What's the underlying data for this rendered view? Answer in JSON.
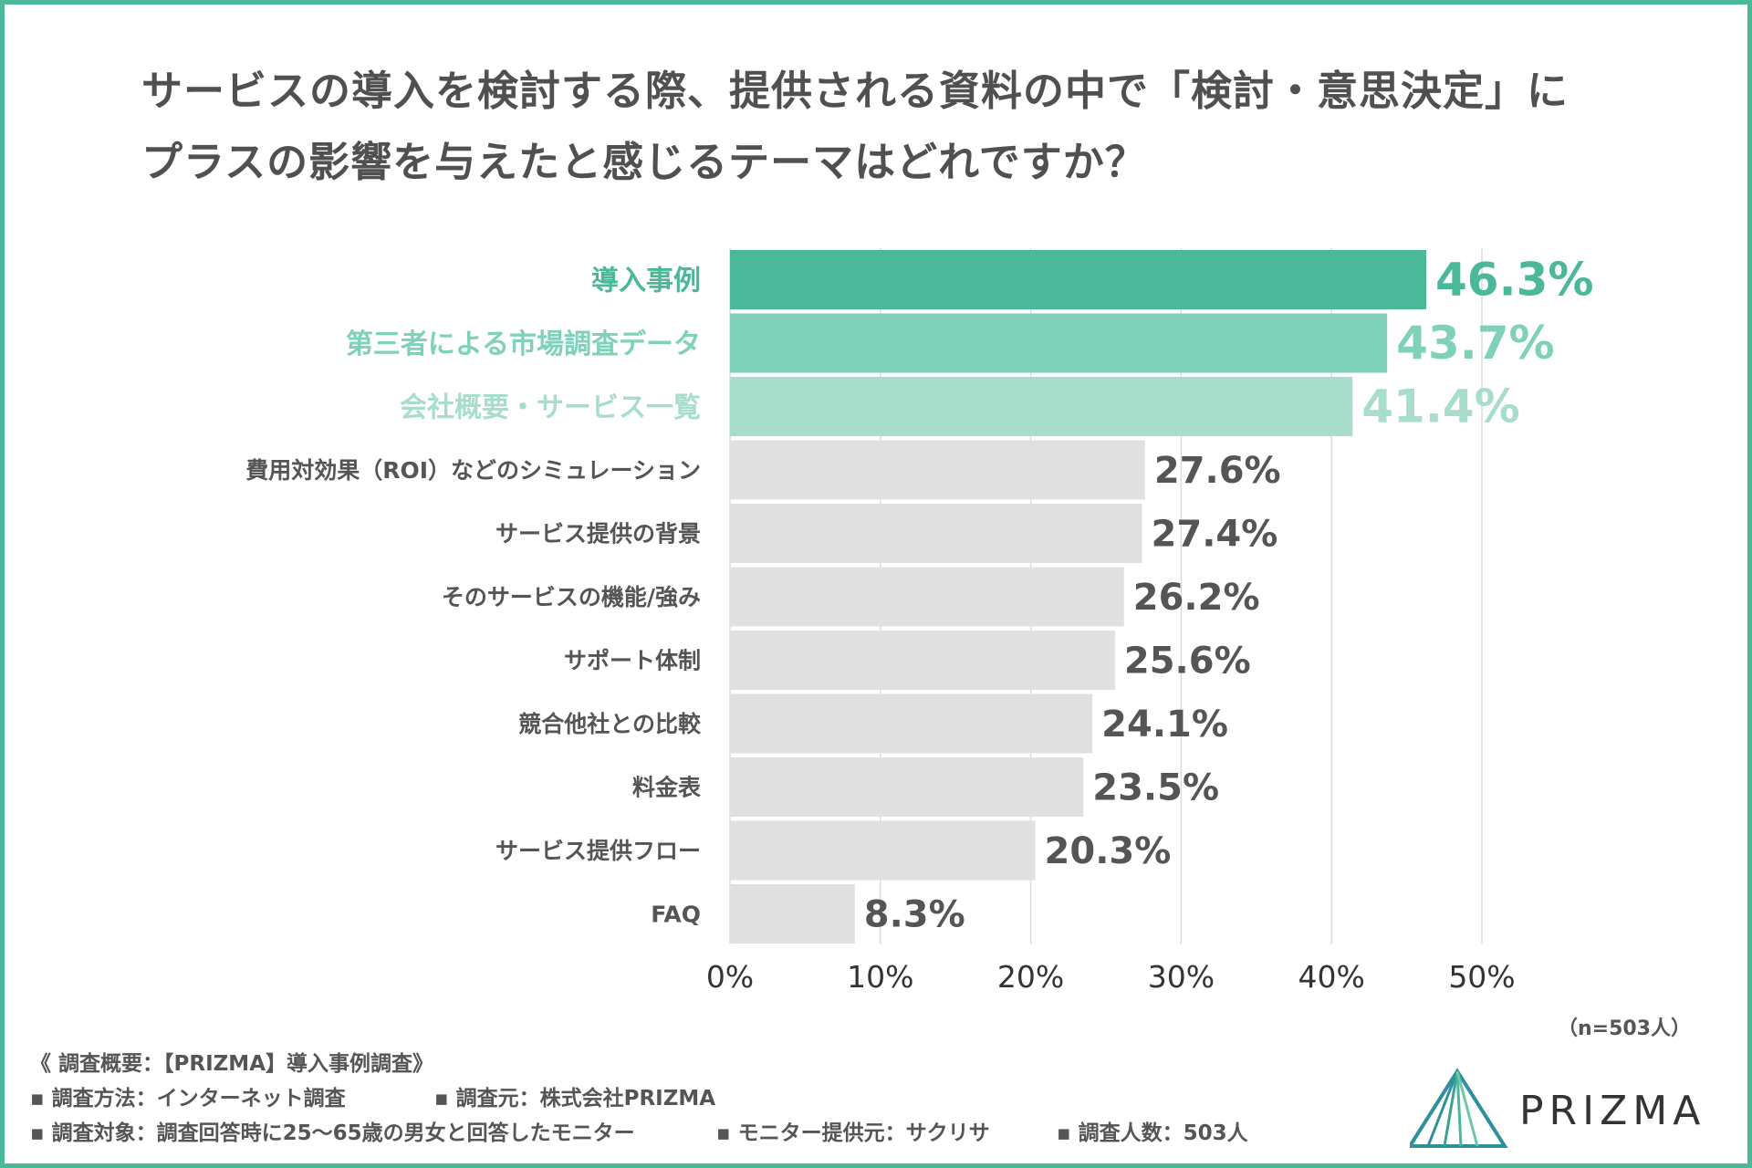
{
  "title_lines": [
    "サービスの導入を検討する際、提供される資料の中で「検討・意思決定」に",
    "プラスの影響を与えたと感じるテーマはどれですか？"
  ],
  "colors": {
    "border": "#4bb89a",
    "highlight_1": "#4bb89a",
    "highlight_2": "#7fd1b9",
    "highlight_3": "#a8ddcc",
    "bar_gray": "#e0e0e0",
    "text_gray": "#555555"
  },
  "chart_data": {
    "type": "bar",
    "orientation": "horizontal",
    "categories": [
      "導入事例",
      "第三者による市場調査データ",
      "会社概要・サービス一覧",
      "費用対効果（ROI）などのシミュレーション",
      "サービス提供の背景",
      "そのサービスの機能/強み",
      "サポート体制",
      "競合他社との比較",
      "料金表",
      "サービス提供フロー",
      "FAQ"
    ],
    "values": [
      46.3,
      43.7,
      41.4,
      27.6,
      27.4,
      26.2,
      25.6,
      24.1,
      23.5,
      20.3,
      8.3
    ],
    "value_labels": [
      "46.3%",
      "43.7%",
      "41.4%",
      "27.6%",
      "27.4%",
      "26.2%",
      "25.6%",
      "24.1%",
      "23.5%",
      "20.3%",
      "8.3%"
    ],
    "xlim": [
      0,
      50
    ],
    "xticks": [
      "0%",
      "10%",
      "20%",
      "30%",
      "40%",
      "50%"
    ],
    "grid": true,
    "legend": "none"
  },
  "sample_size": "（n=503人）",
  "footer": {
    "heading": "《 調査概要：【PRIZMA】導入事例調査》",
    "method": "▪ 調査方法：インターネット調査",
    "source": "▪ 調査元：株式会社PRIZMA",
    "target": "▪ 調査対象：調査回答時に25〜65歳の男女と回答したモニター",
    "provider": "▪ モニター提供元：サクリサ",
    "count": "▪ 調査人数：503人"
  },
  "logo": {
    "text": "PRIZMA",
    "icon": "prism-triangle-icon"
  }
}
